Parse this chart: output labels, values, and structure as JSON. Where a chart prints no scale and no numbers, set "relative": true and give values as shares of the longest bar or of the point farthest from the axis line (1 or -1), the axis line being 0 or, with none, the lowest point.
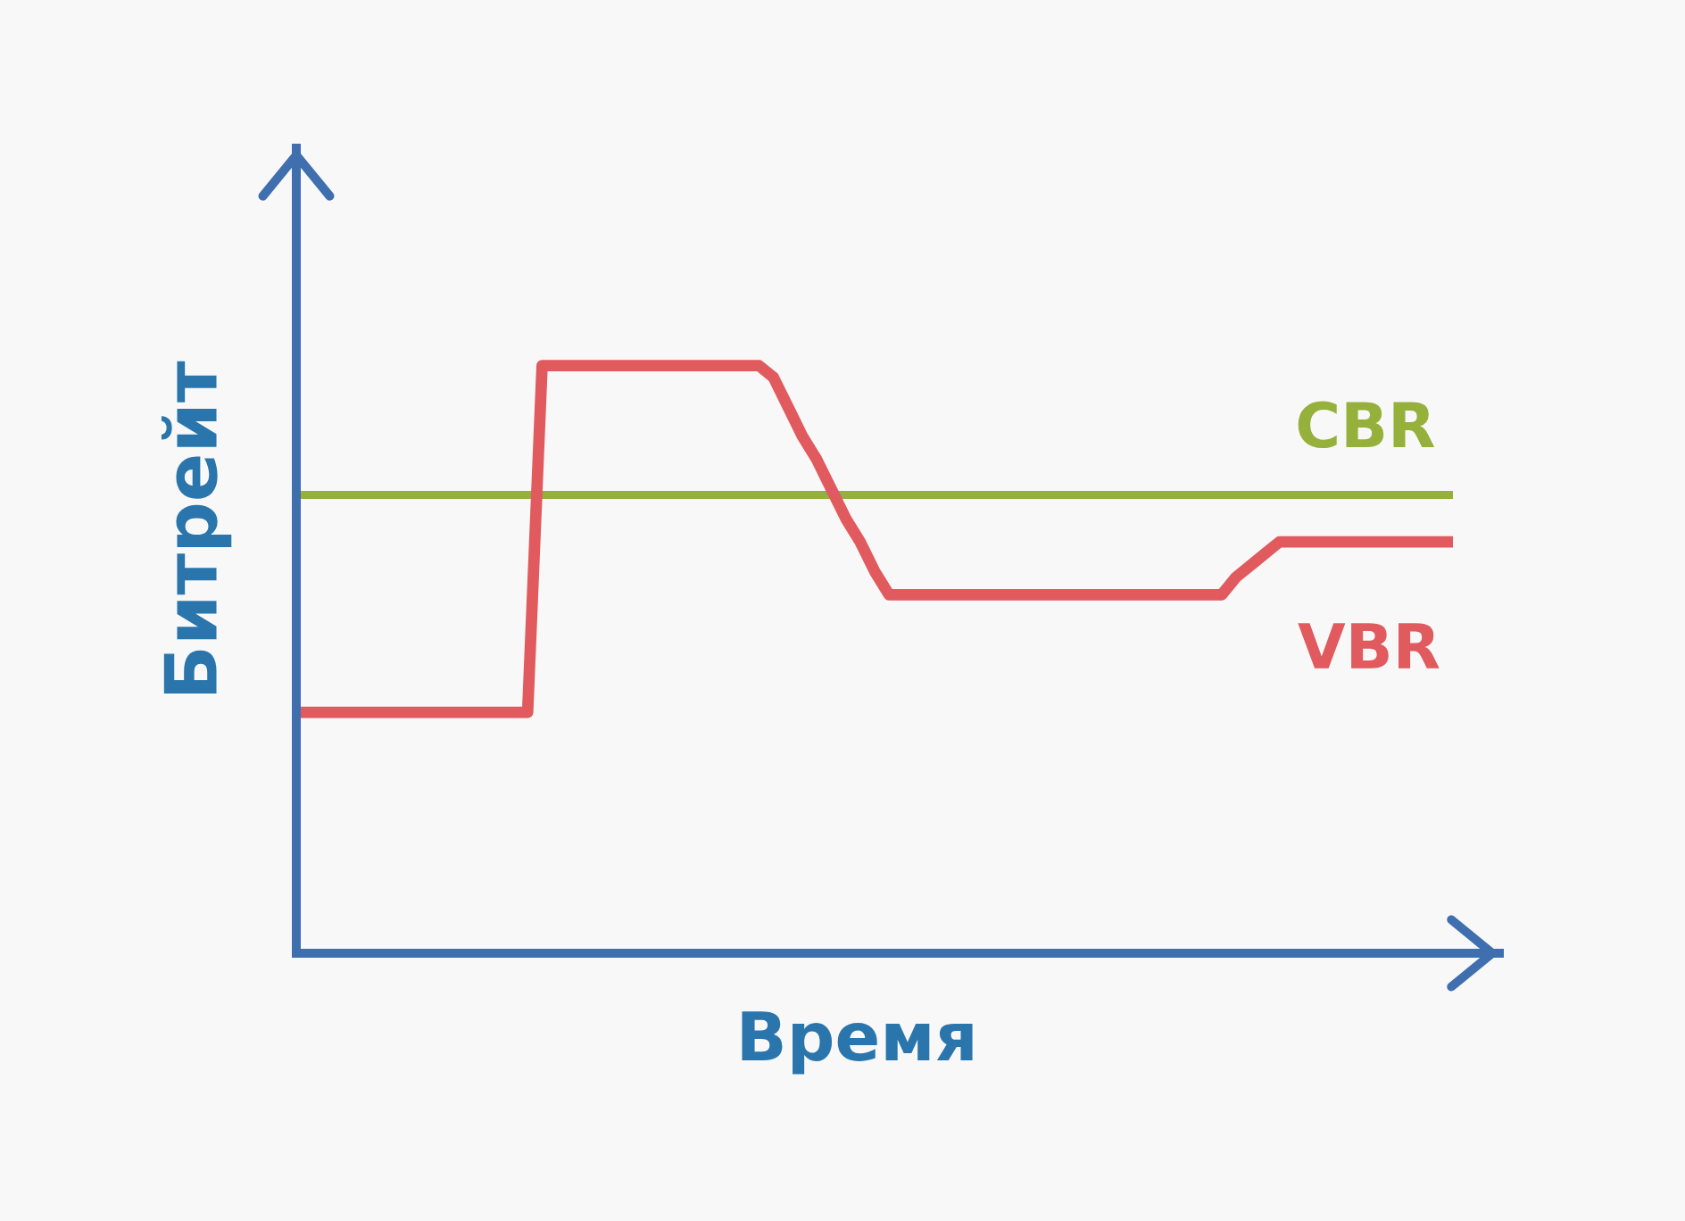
{
  "chart_data": {
    "type": "line",
    "xlabel": "Время",
    "ylabel": "Битрейт",
    "relative": true,
    "categories": [
      null,
      null,
      null,
      null,
      null,
      null,
      null,
      null,
      null,
      null,
      null,
      null,
      null,
      null,
      null,
      null,
      null,
      null,
      null,
      null,
      null,
      null,
      null,
      null,
      null,
      null,
      null,
      null,
      null,
      null,
      null,
      null,
      null,
      null,
      null,
      null,
      null,
      null,
      null,
      null,
      null,
      null,
      null,
      null,
      null,
      null,
      null,
      null,
      null,
      null,
      null,
      null,
      null,
      null,
      null,
      null,
      null,
      null,
      null,
      null,
      null,
      null,
      null,
      null,
      null,
      null,
      null,
      null,
      null,
      null,
      null,
      null,
      null,
      null,
      null,
      null,
      null,
      null,
      null,
      null,
      null
    ],
    "series": [
      {
        "name": "CBR",
        "color": "#95b03b",
        "values": [
          0.78,
          0.78,
          0.78,
          0.78,
          0.78,
          0.78,
          0.78,
          0.78,
          0.78,
          0.78,
          0.78,
          0.78,
          0.78,
          0.78,
          0.78,
          0.78,
          0.78,
          0.78,
          0.78,
          0.78,
          0.78,
          0.78,
          0.78,
          0.78,
          0.78,
          0.78,
          0.78,
          0.78,
          0.78,
          0.78,
          0.78,
          0.78,
          0.78,
          0.78,
          0.78,
          0.78,
          0.78,
          0.78,
          0.78,
          0.78,
          0.78,
          0.78,
          0.78,
          0.78,
          0.78,
          0.78,
          0.78,
          0.78,
          0.78,
          0.78,
          0.78,
          0.78,
          0.78,
          0.78,
          0.78,
          0.78,
          0.78,
          0.78,
          0.78,
          0.78,
          0.78,
          0.78,
          0.78,
          0.78,
          0.78,
          0.78,
          0.78,
          0.78,
          0.78,
          0.78,
          0.78,
          0.78,
          0.78,
          0.78,
          0.78,
          0.78,
          0.78,
          0.78,
          0.78,
          0.78,
          0.78
        ]
      },
      {
        "name": "VBR",
        "color": "#e05a5e",
        "values": [
          0.41,
          0.41,
          0.41,
          0.41,
          0.41,
          0.41,
          0.41,
          0.41,
          0.41,
          0.41,
          0.41,
          0.41,
          0.41,
          0.41,
          0.41,
          0.41,
          0.41,
          1.0,
          1.0,
          1.0,
          1.0,
          1.0,
          1.0,
          1.0,
          1.0,
          1.0,
          1.0,
          1.0,
          1.0,
          1.0,
          1.0,
          1.0,
          1.0,
          0.98,
          0.93,
          0.88,
          0.84,
          0.79,
          0.74,
          0.7,
          0.65,
          0.61,
          0.61,
          0.61,
          0.61,
          0.61,
          0.61,
          0.61,
          0.61,
          0.61,
          0.61,
          0.61,
          0.61,
          0.61,
          0.61,
          0.61,
          0.61,
          0.61,
          0.61,
          0.61,
          0.61,
          0.61,
          0.61,
          0.61,
          0.61,
          0.64,
          0.66,
          0.68,
          0.7,
          0.7,
          0.7,
          0.7,
          0.7,
          0.7,
          0.7,
          0.7,
          0.7,
          0.7,
          0.7,
          0.7,
          0.7
        ]
      }
    ]
  }
}
